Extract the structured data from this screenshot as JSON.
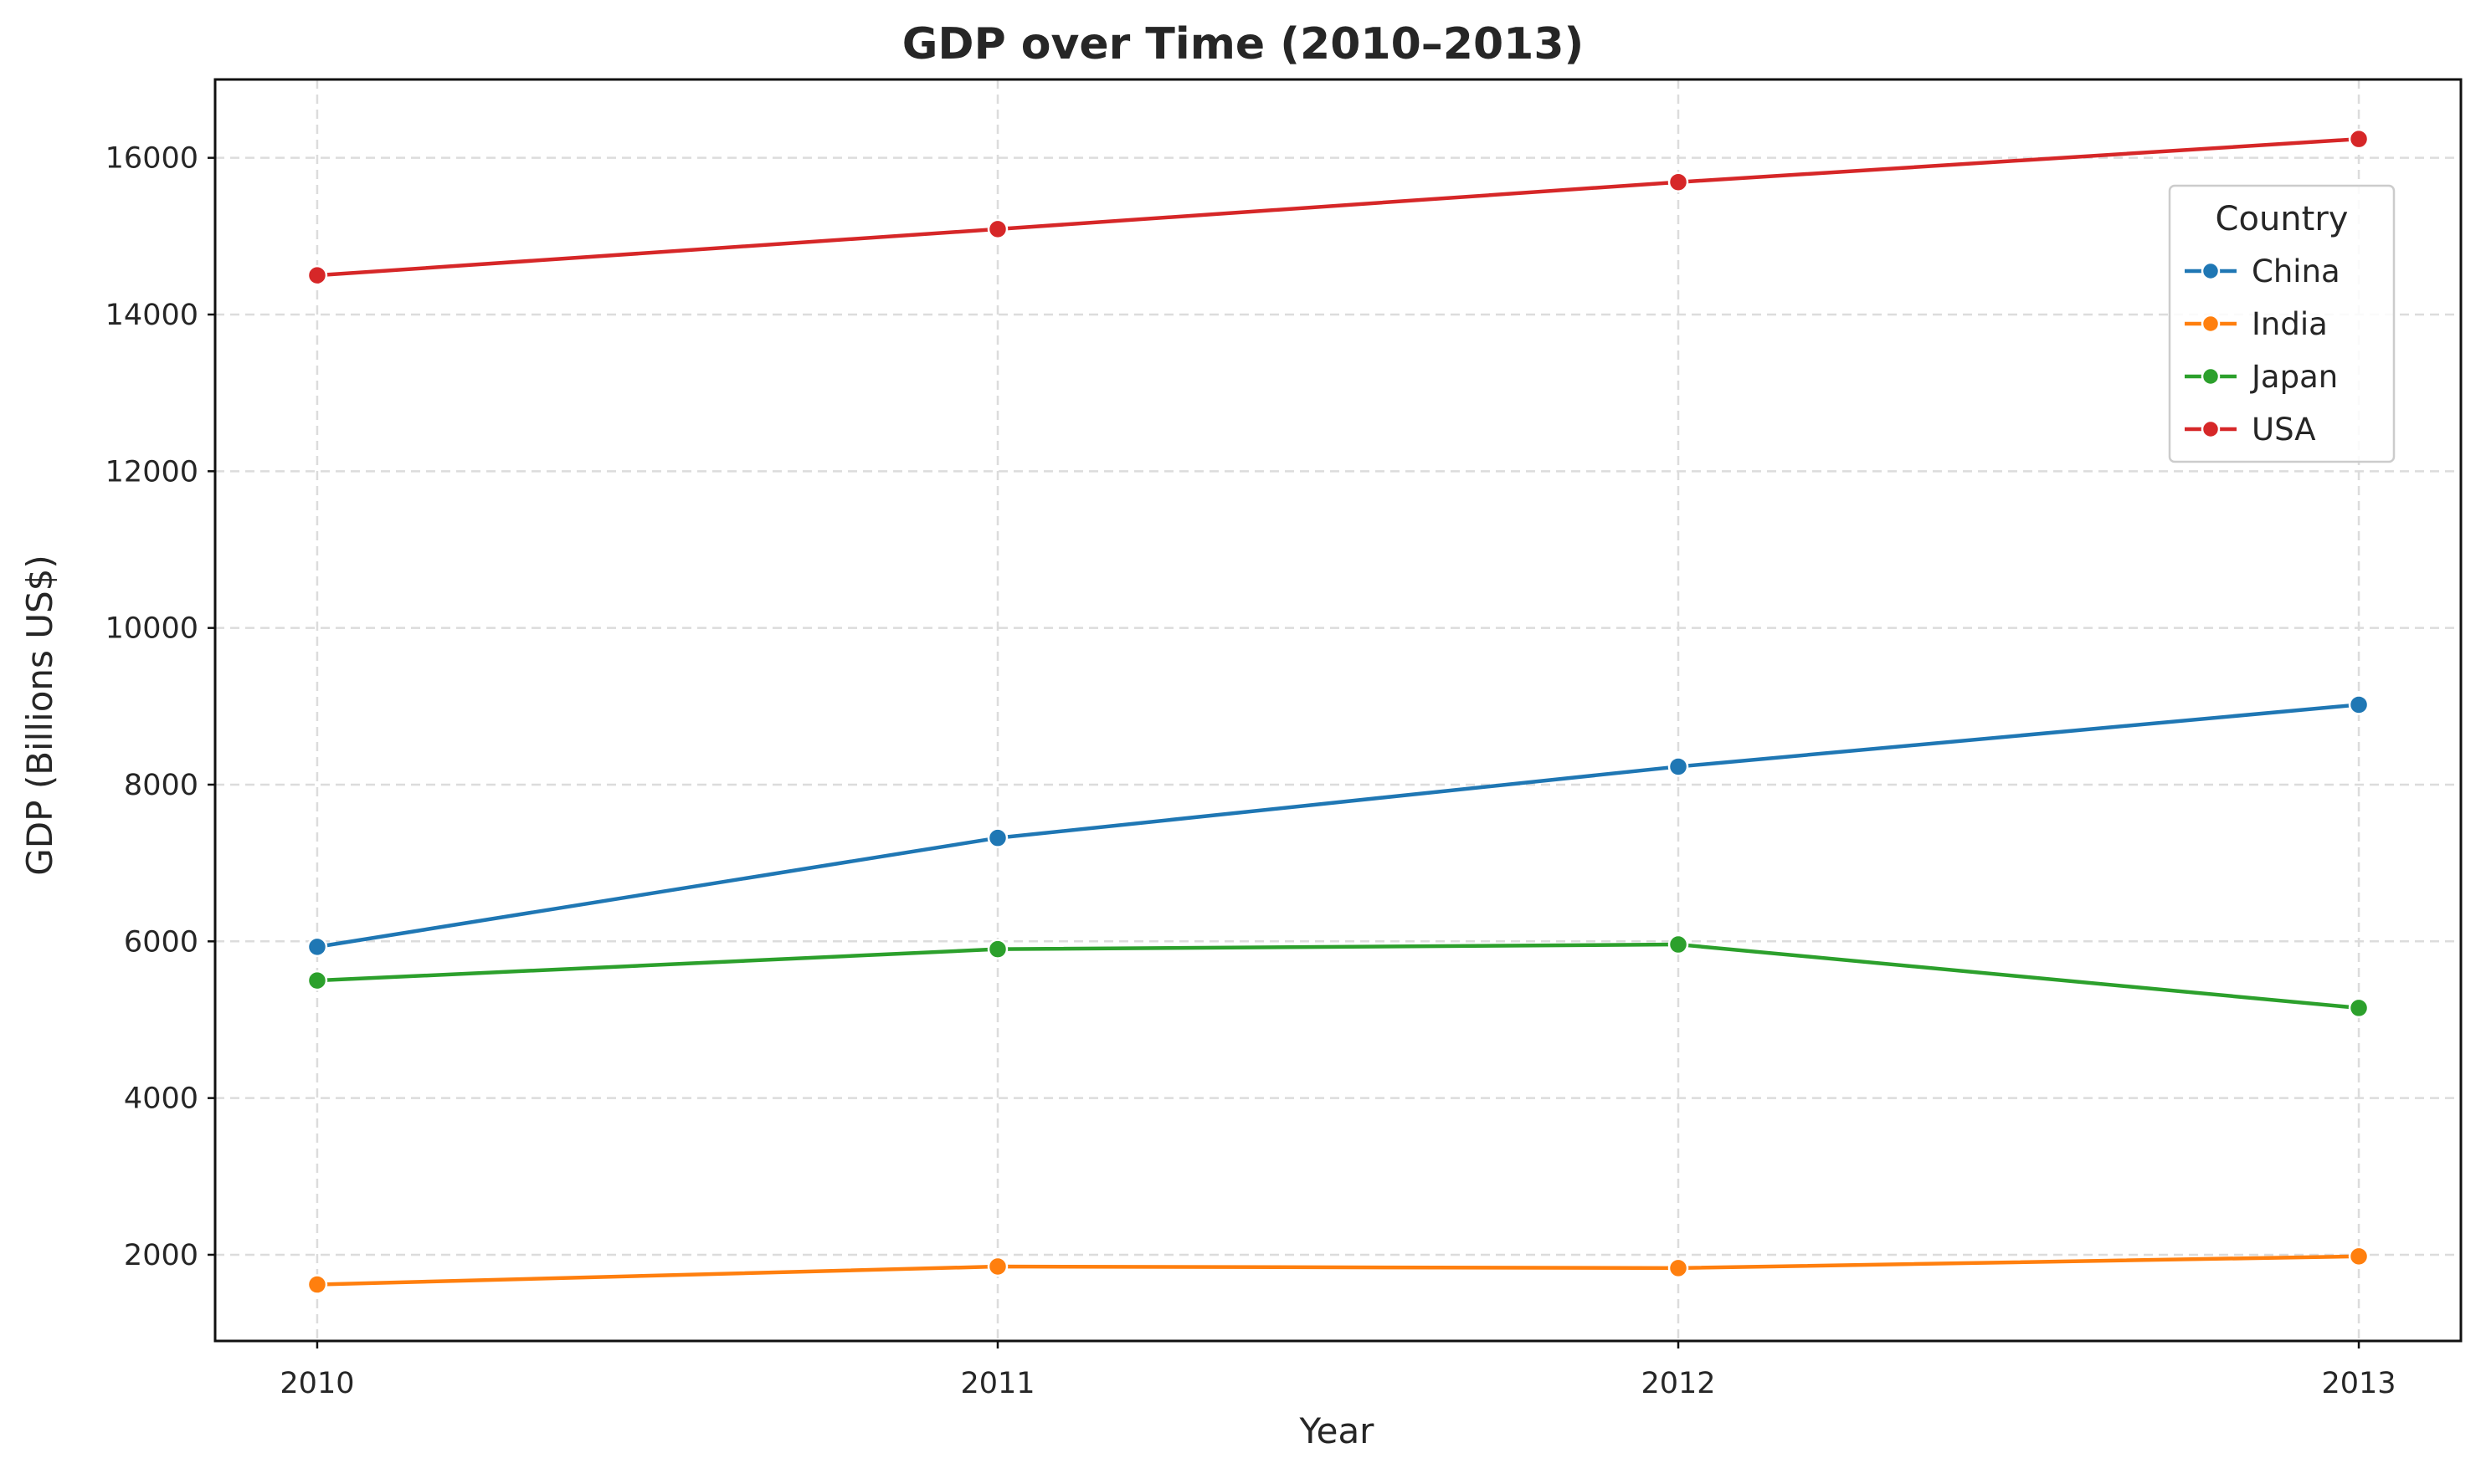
{
  "chart_data": {
    "type": "line",
    "title": "GDP over Time (2010–2013)",
    "xlabel": "Year",
    "ylabel": "GDP (Billions US$)",
    "x": [
      2010,
      2011,
      2012,
      2013
    ],
    "x_tick_labels": [
      "2010",
      "2011",
      "2012",
      "2013"
    ],
    "xlim": [
      2009.85,
      2013.15
    ],
    "ylim": [
      900,
      17000
    ],
    "y_ticks": [
      2000,
      4000,
      6000,
      8000,
      10000,
      12000,
      14000,
      16000
    ],
    "y_tick_labels": [
      "2000",
      "4000",
      "6000",
      "8000",
      "10000",
      "12000",
      "14000",
      "16000"
    ],
    "grid": true,
    "legend": {
      "title": "Country",
      "position": "top-right"
    },
    "series": [
      {
        "name": "China",
        "color": "#1f77b4",
        "values": [
          5930,
          7320,
          8230,
          9020
        ]
      },
      {
        "name": "India",
        "color": "#ff7f0e",
        "values": [
          1620,
          1850,
          1830,
          1980
        ]
      },
      {
        "name": "Japan",
        "color": "#2ca02c",
        "values": [
          5500,
          5900,
          5960,
          5150
        ]
      },
      {
        "name": "USA",
        "color": "#d62728",
        "values": [
          14500,
          15090,
          15690,
          16240
        ]
      }
    ]
  }
}
